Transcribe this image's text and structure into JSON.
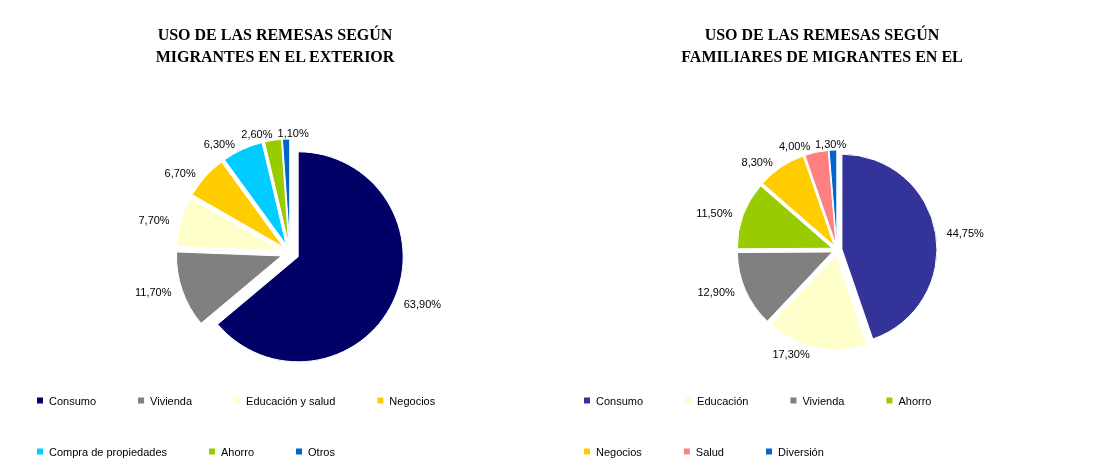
{
  "chart_data": [
    {
      "type": "pie",
      "title": "USO DE LAS REMESAS SEGÚN\nMIGRANTES EN EL EXTERIOR",
      "categories": [
        "Consumo",
        "Vivienda",
        "Educación y salud",
        "Negocios",
        "Compra de propiedades",
        "Ahorro",
        "Otros"
      ],
      "values": [
        63.9,
        11.7,
        7.7,
        6.7,
        6.3,
        2.6,
        1.1
      ],
      "value_labels": [
        "63,90%",
        "11,70%",
        "7,70%",
        "6,70%",
        "6,30%",
        "2,60%",
        "1,10%"
      ],
      "colors": [
        "#000066",
        "#808080",
        "#ffffcc",
        "#ffcc00",
        "#00ccff",
        "#99cc00",
        "#0066cc"
      ],
      "legend": "bottom"
    },
    {
      "type": "pie",
      "title": "USO DE LAS REMESAS SEGÚN\nFAMILIARES DE MIGRANTES EN EL",
      "categories": [
        "Consumo",
        "Educación",
        "Vivienda",
        "Ahorro",
        "Negocios",
        "Salud",
        "Diversión"
      ],
      "values": [
        44.75,
        17.3,
        12.9,
        11.5,
        8.3,
        4.0,
        1.3
      ],
      "value_labels": [
        "44,75%",
        "17,30%",
        "12,90%",
        "11,50%",
        "8,30%",
        "4,00%",
        "1,30%"
      ],
      "colors": [
        "#333399",
        "#ffffcc",
        "#808080",
        "#99cc00",
        "#ffcc00",
        "#ff8080",
        "#0066cc"
      ],
      "legend": "bottom"
    }
  ]
}
